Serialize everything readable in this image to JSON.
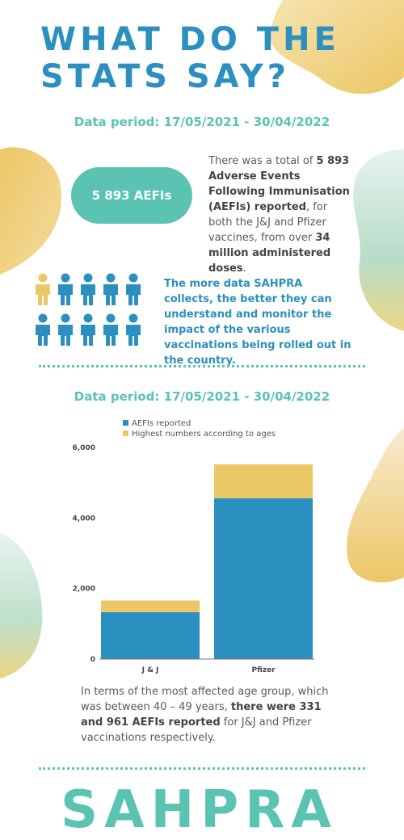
{
  "title": {
    "line1": "WHAT DO THE",
    "line2": "STATS SAY?"
  },
  "period_top": "Data period: 17/05/2021 - 30/04/2022",
  "pill_label": "5 893 AEFIs",
  "summary": {
    "part1": "There was a total of ",
    "bold1": "5 893 Adverse Events Following Immunisation (AEFIs) reported",
    "part2": ", for both the J&J and Pfizer vaccines, from over ",
    "bold2": "34 million administered doses",
    "part3": "."
  },
  "callout": "The more data SAHPRA collects, the better they can understand and monitor the impact of the various vaccinations being rolled out in the country.",
  "people": {
    "total": 10,
    "highlighted": 1
  },
  "period_bottom": "Data period: 17/05/2021 - 30/04/2022",
  "chart_data": {
    "type": "bar",
    "stacked": true,
    "categories": [
      "J & J",
      "Pfizer"
    ],
    "series": [
      {
        "name": "AEFIs reported",
        "values": [
          1330,
          4560
        ],
        "color": "#2b8fbf"
      },
      {
        "name": "Highest numbers according to ages",
        "values": [
          331,
          961
        ],
        "color": "#ecc765"
      }
    ],
    "ylim": [
      0,
      6000
    ],
    "yticks": [
      0,
      2000,
      4000,
      6000
    ],
    "ytick_labels": [
      "0",
      "2,000",
      "4,000",
      "6,000"
    ],
    "legend": "top-left",
    "grid": false
  },
  "note": {
    "part1": "In terms of the most affected age group, which was between 40 – 49 years, ",
    "bold1": "there were 331 and 961 AEFIs reported",
    "part2": " for J&J and Pfizer vaccinations respectively."
  },
  "brand": "SAHPRA",
  "colors": {
    "blue": "#2b8fbf",
    "teal": "#5ac3b2",
    "yellow": "#ecc765"
  }
}
